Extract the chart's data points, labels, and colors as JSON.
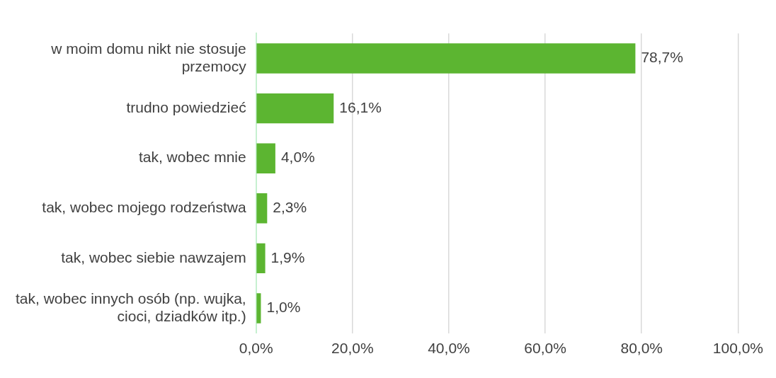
{
  "chart_data": {
    "type": "bar",
    "orientation": "horizontal",
    "categories": [
      "w moim domu nikt nie stosuje przemocy",
      "trudno powiedzieć",
      "tak, wobec mnie",
      "tak, wobec mojego rodzeństwa",
      "tak, wobec siebie nawzajem",
      "tak, wobec innych osób (np. wujka, cioci, dziadków itp.)"
    ],
    "values": [
      78.7,
      16.1,
      4.0,
      2.3,
      1.9,
      1.0
    ],
    "value_labels": [
      "78,7%",
      "16,1%",
      "4,0%",
      "2,3%",
      "1,9%",
      "1,0%"
    ],
    "color": "#5cb531",
    "xlim": [
      0,
      100
    ],
    "xticks": [
      {
        "value": 0,
        "label": "0,0%"
      },
      {
        "value": 20,
        "label": "20,0%"
      },
      {
        "value": 40,
        "label": "40,0%"
      },
      {
        "value": 60,
        "label": "60,0%"
      },
      {
        "value": 80,
        "label": "80,0%"
      },
      {
        "value": 100,
        "label": "100,0%"
      }
    ],
    "grid": "x",
    "legend": false
  }
}
